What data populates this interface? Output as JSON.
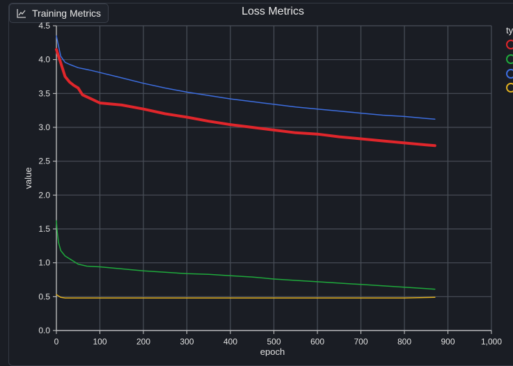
{
  "tab": {
    "label": "Training Metrics",
    "icon": "line-chart-icon"
  },
  "chart_data": {
    "type": "line",
    "title": "Loss Metrics",
    "xlabel": "epoch",
    "ylabel": "value",
    "xlim": [
      0,
      1000
    ],
    "ylim": [
      0,
      4.5
    ],
    "xticks": [
      "0",
      "100",
      "200",
      "300",
      "400",
      "500",
      "600",
      "700",
      "800",
      "900",
      "1,000"
    ],
    "yticks": [
      "0.0",
      "0.5",
      "1.0",
      "1.5",
      "2.0",
      "2.5",
      "3.0",
      "3.5",
      "4.0",
      "4.5"
    ],
    "grid": true,
    "legend": {
      "title": "ty",
      "placement": "right"
    },
    "series": [
      {
        "color": "#e0262b",
        "x": [
          0,
          5,
          10,
          20,
          30,
          40,
          50,
          60,
          80,
          100,
          150,
          200,
          250,
          300,
          350,
          400,
          450,
          500,
          550,
          600,
          650,
          700,
          750,
          800,
          850,
          870
        ],
        "y": [
          4.15,
          4.05,
          3.95,
          3.75,
          3.67,
          3.62,
          3.58,
          3.48,
          3.42,
          3.36,
          3.33,
          3.27,
          3.2,
          3.15,
          3.09,
          3.04,
          3.0,
          2.96,
          2.92,
          2.9,
          2.86,
          2.83,
          2.8,
          2.77,
          2.74,
          2.73
        ]
      },
      {
        "color": "#1faa3c",
        "x": [
          0,
          2,
          5,
          10,
          20,
          30,
          50,
          70,
          100,
          150,
          200,
          250,
          300,
          350,
          400,
          450,
          500,
          550,
          600,
          650,
          700,
          750,
          800,
          850,
          870
        ],
        "y": [
          1.62,
          1.45,
          1.3,
          1.18,
          1.1,
          1.06,
          0.98,
          0.95,
          0.94,
          0.91,
          0.88,
          0.86,
          0.84,
          0.83,
          0.81,
          0.79,
          0.76,
          0.74,
          0.72,
          0.7,
          0.68,
          0.66,
          0.64,
          0.62,
          0.61
        ]
      },
      {
        "color": "#3d6ee0",
        "x": [
          0,
          5,
          10,
          20,
          30,
          50,
          80,
          100,
          150,
          200,
          250,
          300,
          350,
          400,
          450,
          500,
          550,
          600,
          650,
          700,
          750,
          800,
          850,
          870
        ],
        "y": [
          4.35,
          4.2,
          4.05,
          3.96,
          3.93,
          3.88,
          3.84,
          3.81,
          3.73,
          3.65,
          3.58,
          3.52,
          3.47,
          3.42,
          3.38,
          3.34,
          3.3,
          3.27,
          3.24,
          3.21,
          3.18,
          3.16,
          3.13,
          3.12
        ]
      },
      {
        "color": "#e0b020",
        "x": [
          0,
          5,
          10,
          20,
          50,
          100,
          200,
          300,
          400,
          500,
          600,
          700,
          800,
          870
        ],
        "y": [
          0.53,
          0.51,
          0.49,
          0.48,
          0.48,
          0.48,
          0.48,
          0.48,
          0.48,
          0.48,
          0.48,
          0.48,
          0.48,
          0.49
        ]
      }
    ]
  }
}
